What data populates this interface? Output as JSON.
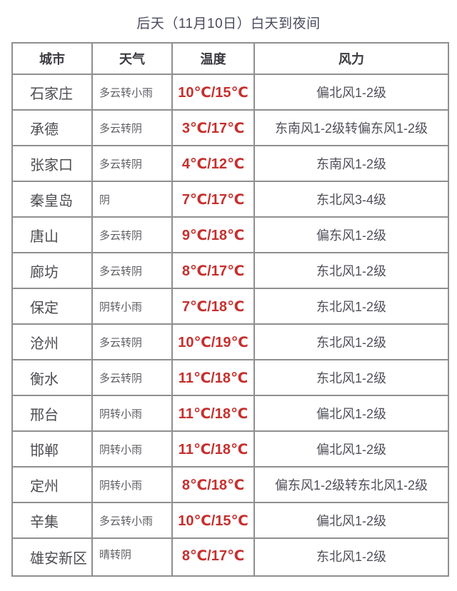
{
  "title": "后天（11月10日）白天到夜间",
  "colors": {
    "temperature": "#c5302e",
    "title": "#4a4a5e",
    "header_text": "#3a3a40",
    "city_text": "#4c4c52",
    "weather_text": "#5d5d63",
    "wind_text": "#50505a",
    "border": "#8f8f8f",
    "background": "#ffffff"
  },
  "chart_data": {
    "type": "table",
    "title": "后天（11月10日）白天到夜间",
    "columns": [
      "城市",
      "天气",
      "温度",
      "风力"
    ],
    "rows": [
      [
        "石家庄",
        "多云转小雨",
        "10℃/15℃",
        "偏北风1-2级"
      ],
      [
        "承德",
        "多云转阴",
        "3℃/17℃",
        "东南风1-2级转偏东风1-2级"
      ],
      [
        "张家口",
        "多云转阴",
        "4℃/12℃",
        "东南风1-2级"
      ],
      [
        "秦皇岛",
        "阴",
        "7℃/17℃",
        "东北风3-4级"
      ],
      [
        "唐山",
        "多云转阴",
        "9℃/18℃",
        "偏东风1-2级"
      ],
      [
        "廊坊",
        "多云转阴",
        "8℃/17℃",
        "东北风1-2级"
      ],
      [
        "保定",
        "阴转小雨",
        "7℃/18℃",
        "东北风1-2级"
      ],
      [
        "沧州",
        "多云转阴",
        "10℃/19℃",
        "东北风1-2级"
      ],
      [
        "衡水",
        "多云转阴",
        "11℃/18℃",
        "东北风1-2级"
      ],
      [
        "邢台",
        "阴转小雨",
        "11℃/18℃",
        "偏北风1-2级"
      ],
      [
        "邯郸",
        "阴转小雨",
        "11℃/18℃",
        "偏北风1-2级"
      ],
      [
        "定州",
        "阴转小雨",
        "8℃/18℃",
        "偏东风1-2级转东北风1-2级"
      ],
      [
        "辛集",
        "多云转小雨",
        "10℃/15℃",
        "偏北风1-2级"
      ],
      [
        "雄安新区",
        "晴转阴",
        "8℃/17℃",
        "东北风1-2级"
      ]
    ]
  }
}
